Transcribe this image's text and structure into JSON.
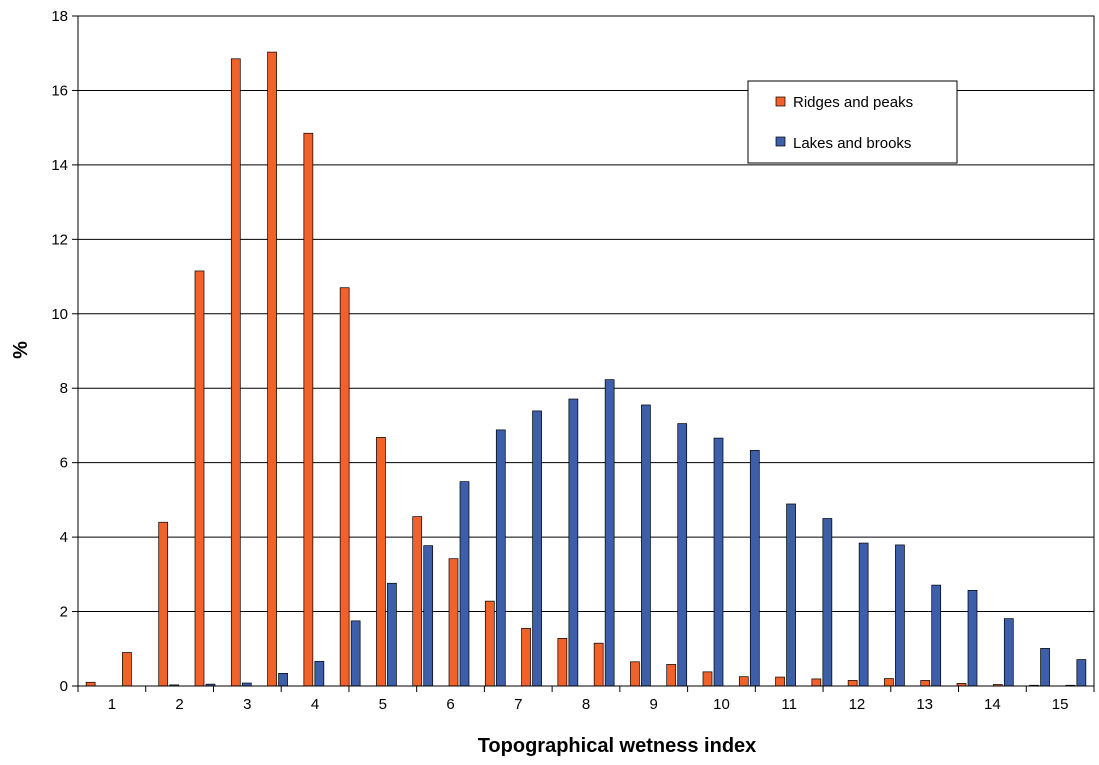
{
  "chart_data": {
    "type": "bar",
    "xlabel": "Topographical wetness index",
    "ylabel": "%",
    "ylim": [
      0,
      18
    ],
    "y_ticks": [
      "0",
      "2",
      "4",
      "6",
      "8",
      "10",
      "12",
      "14",
      "16",
      "18"
    ],
    "x_tick_labels": [
      "1",
      "2",
      "3",
      "4",
      "5",
      "6",
      "7",
      "8",
      "9",
      "10",
      "11",
      "12",
      "13",
      "14",
      "15"
    ],
    "categories": [
      1.5,
      2,
      2.5,
      3,
      3.5,
      4,
      4.5,
      5,
      5.5,
      6,
      6.5,
      7,
      7.5,
      8,
      8.5,
      9,
      9.5,
      10,
      10.5,
      11,
      11.5,
      12,
      12.5,
      13,
      13.5,
      14,
      14.5,
      15
    ],
    "grid": true,
    "legend_position": "top-right",
    "series": [
      {
        "name": "Ridges and peaks",
        "color": "#f0622a",
        "values": [
          0.1,
          0.9,
          4.4,
          11.15,
          16.85,
          17.03,
          14.85,
          10.7,
          6.68,
          4.55,
          3.42,
          2.28,
          1.55,
          1.28,
          1.15,
          0.65,
          0.58,
          0.38,
          0.25,
          0.24,
          0.19,
          0.15,
          0.2,
          0.15,
          0.07,
          0.04,
          0.02,
          0.02
        ]
      },
      {
        "name": "Lakes and brooks",
        "color": "#3d5ea8",
        "values": [
          0.0,
          0.0,
          0.03,
          0.05,
          0.08,
          0.34,
          0.66,
          1.75,
          2.76,
          3.77,
          5.49,
          6.88,
          7.39,
          7.71,
          8.23,
          7.55,
          7.05,
          6.66,
          6.33,
          4.89,
          4.5,
          3.84,
          3.79,
          2.71,
          2.57,
          1.81,
          1.01,
          0.71
        ]
      }
    ]
  }
}
